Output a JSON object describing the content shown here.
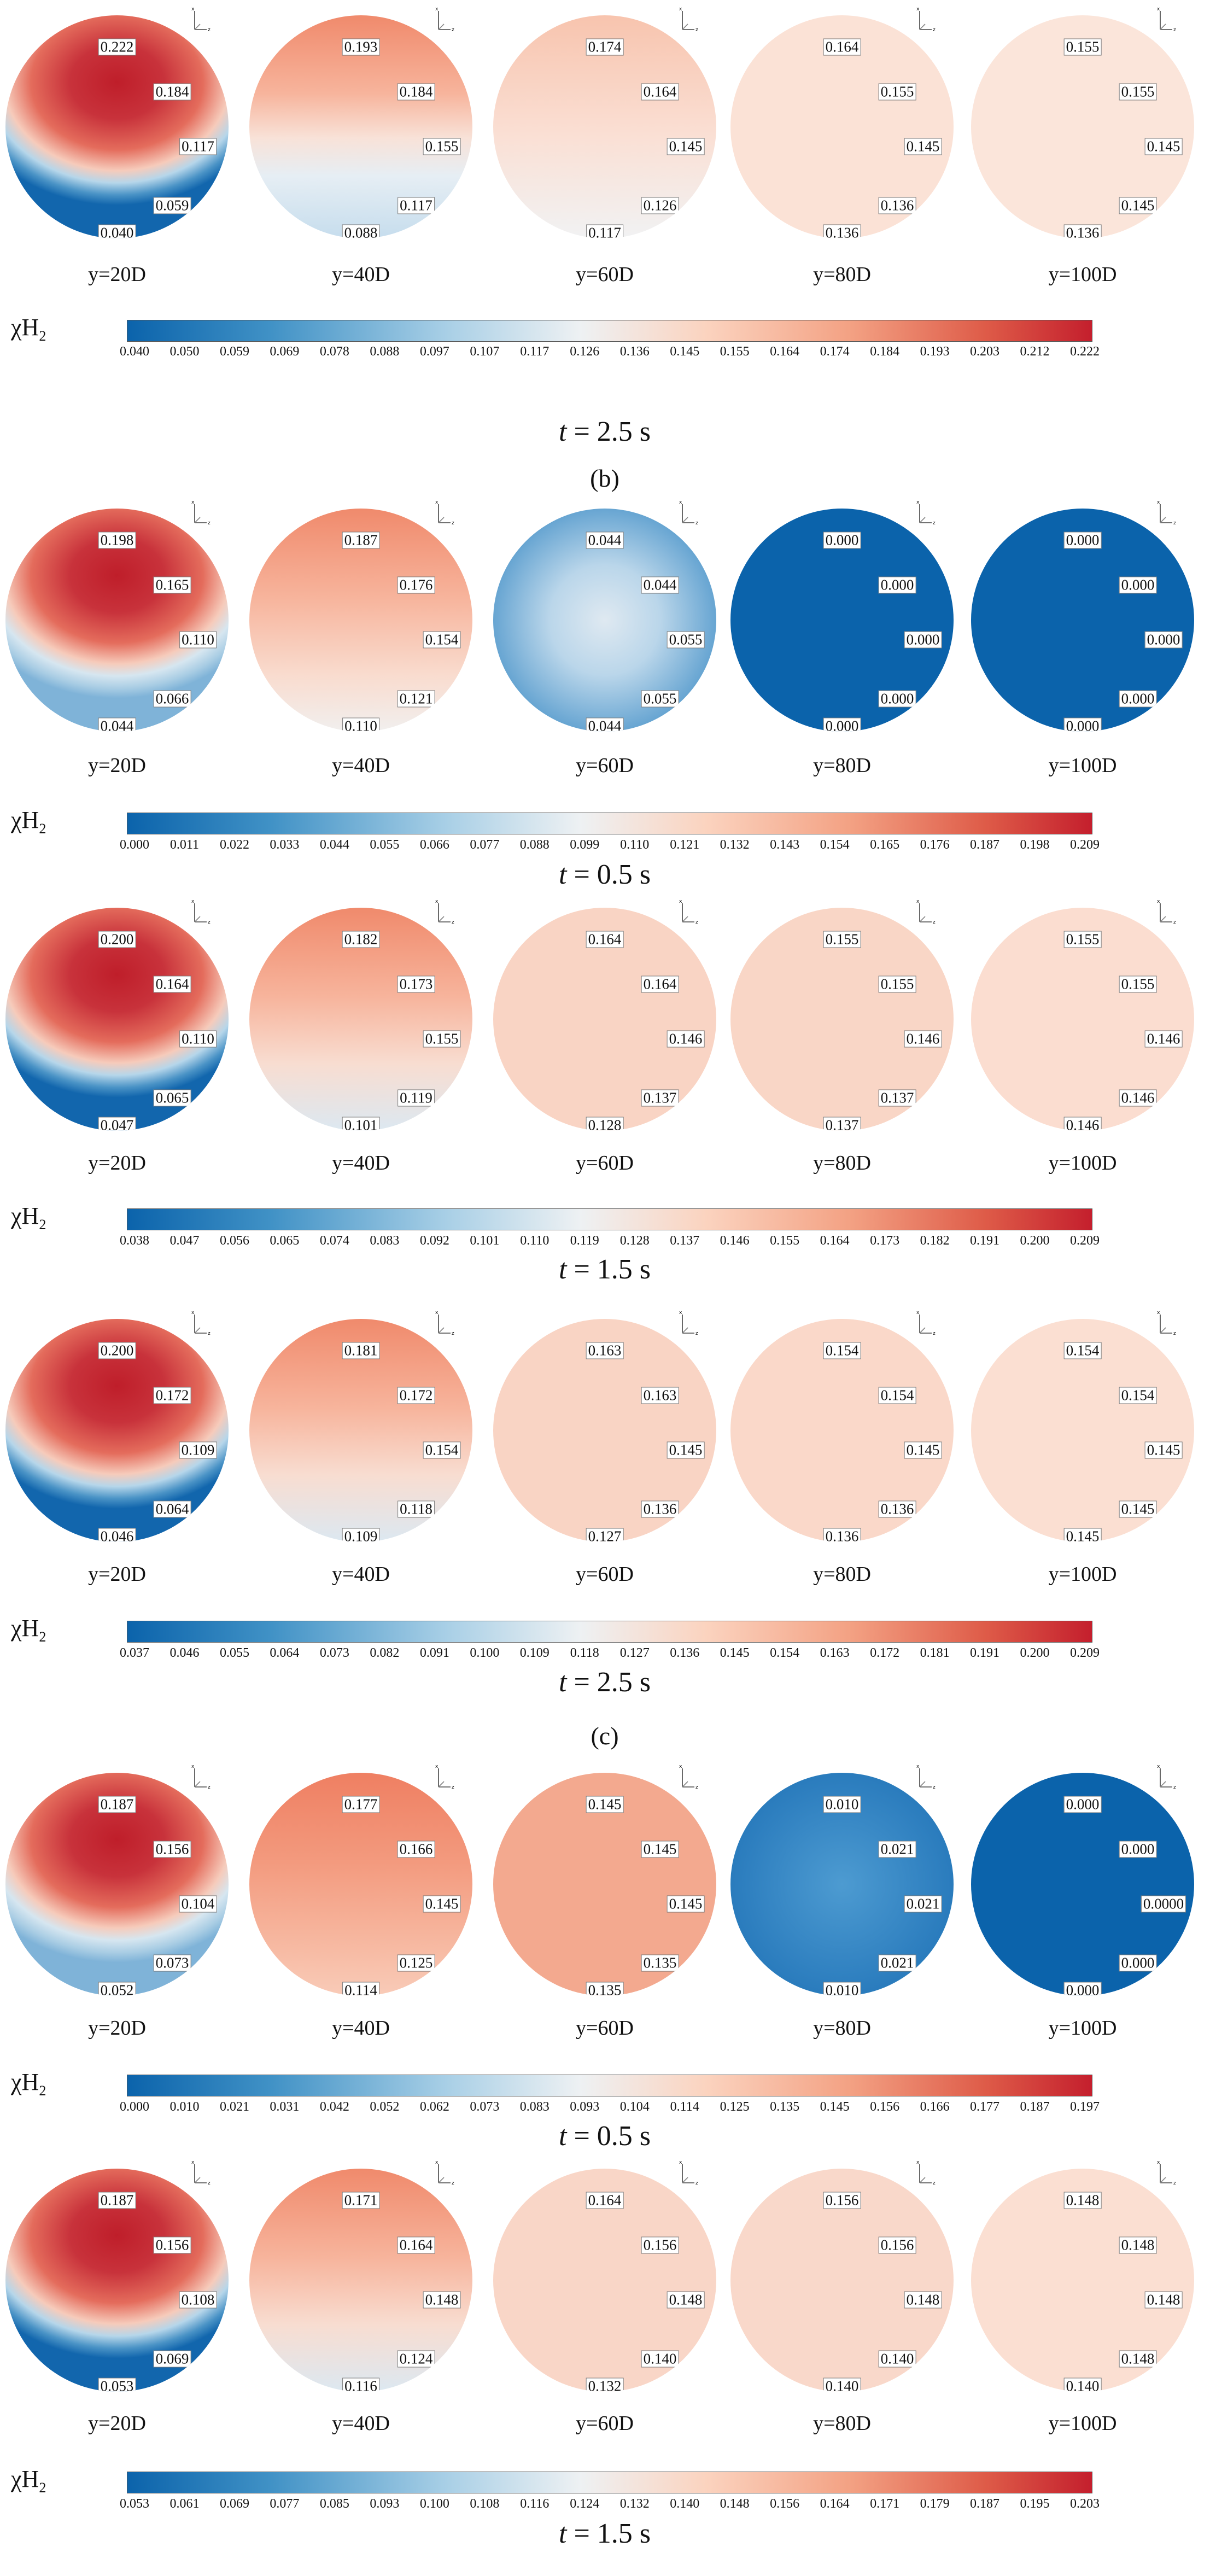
{
  "colorbar_symbol": "χ",
  "colorbar_sub": "H",
  "colorbar_subsub": "2",
  "positions": [
    "y=20D",
    "y=40D",
    "y=60D",
    "y=80D",
    "y=100D"
  ],
  "section_labels": [
    "(b)",
    "(c)"
  ],
  "colors": {
    "low": "#0b63ab",
    "mid": "#eef1f3",
    "high": "#c41f2d"
  },
  "rows": [
    {
      "time_var": "t",
      "time_text": " = 2.5 s",
      "ticks": [
        "0.040",
        "0.050",
        "0.059",
        "0.069",
        "0.078",
        "0.088",
        "0.097",
        "0.107",
        "0.117",
        "0.126",
        "0.136",
        "0.145",
        "0.155",
        "0.164",
        "0.174",
        "0.184",
        "0.193",
        "0.203",
        "0.212",
        "0.222"
      ],
      "circles": [
        {
          "labels": [
            "0.222",
            "0.184",
            "0.117",
            "0.059",
            "0.040"
          ]
        },
        {
          "labels": [
            "0.193",
            "0.184",
            "0.155",
            "0.117",
            "0.088"
          ]
        },
        {
          "labels": [
            "0.174",
            "0.164",
            "0.145",
            "0.126",
            "0.117"
          ]
        },
        {
          "labels": [
            "0.164",
            "0.155",
            "0.145",
            "0.136",
            "0.136"
          ]
        },
        {
          "labels": [
            "0.155",
            "0.155",
            "0.145",
            "0.145",
            "0.136"
          ]
        }
      ]
    },
    {
      "time_var": "t",
      "time_text": " = 0.5 s",
      "ticks": [
        "0.000",
        "0.011",
        "0.022",
        "0.033",
        "0.044",
        "0.055",
        "0.066",
        "0.077",
        "0.088",
        "0.099",
        "0.110",
        "0.121",
        "0.132",
        "0.143",
        "0.154",
        "0.165",
        "0.176",
        "0.187",
        "0.198",
        "0.209"
      ],
      "circles": [
        {
          "labels": [
            "0.198",
            "0.165",
            "0.110",
            "0.066",
            "0.044"
          ]
        },
        {
          "labels": [
            "0.187",
            "0.176",
            "0.154",
            "0.121",
            "0.110"
          ]
        },
        {
          "labels": [
            "0.044",
            "0.044",
            "0.055",
            "0.055",
            "0.044"
          ]
        },
        {
          "labels": [
            "0.000",
            "0.000",
            "0.000",
            "0.000",
            "0.000"
          ]
        },
        {
          "labels": [
            "0.000",
            "0.000",
            "0.000",
            "0.000",
            "0.000"
          ]
        }
      ]
    },
    {
      "time_var": "t",
      "time_text": " = 1.5 s",
      "ticks": [
        "0.038",
        "0.047",
        "0.056",
        "0.065",
        "0.074",
        "0.083",
        "0.092",
        "0.101",
        "0.110",
        "0.119",
        "0.128",
        "0.137",
        "0.146",
        "0.155",
        "0.164",
        "0.173",
        "0.182",
        "0.191",
        "0.200",
        "0.209"
      ],
      "circles": [
        {
          "labels": [
            "0.200",
            "0.164",
            "0.110",
            "0.065",
            "0.047"
          ]
        },
        {
          "labels": [
            "0.182",
            "0.173",
            "0.155",
            "0.119",
            "0.101"
          ]
        },
        {
          "labels": [
            "0.164",
            "0.164",
            "0.146",
            "0.137",
            "0.128"
          ]
        },
        {
          "labels": [
            "0.155",
            "0.155",
            "0.146",
            "0.137",
            "0.137"
          ]
        },
        {
          "labels": [
            "0.155",
            "0.155",
            "0.146",
            "0.146",
            "0.146"
          ]
        }
      ]
    },
    {
      "time_var": "t",
      "time_text": " = 2.5 s",
      "ticks": [
        "0.037",
        "0.046",
        "0.055",
        "0.064",
        "0.073",
        "0.082",
        "0.091",
        "0.100",
        "0.109",
        "0.118",
        "0.127",
        "0.136",
        "0.145",
        "0.154",
        "0.163",
        "0.172",
        "0.181",
        "0.191",
        "0.200",
        "0.209"
      ],
      "circles": [
        {
          "labels": [
            "0.200",
            "0.172",
            "0.109",
            "0.064",
            "0.046"
          ]
        },
        {
          "labels": [
            "0.181",
            "0.172",
            "0.154",
            "0.118",
            "0.109"
          ]
        },
        {
          "labels": [
            "0.163",
            "0.163",
            "0.145",
            "0.136",
            "0.127"
          ]
        },
        {
          "labels": [
            "0.154",
            "0.154",
            "0.145",
            "0.136",
            "0.136"
          ]
        },
        {
          "labels": [
            "0.154",
            "0.154",
            "0.145",
            "0.145",
            "0.145"
          ]
        }
      ]
    },
    {
      "time_var": "t",
      "time_text": " = 0.5 s",
      "ticks": [
        "0.000",
        "0.010",
        "0.021",
        "0.031",
        "0.042",
        "0.052",
        "0.062",
        "0.073",
        "0.083",
        "0.093",
        "0.104",
        "0.114",
        "0.125",
        "0.135",
        "0.145",
        "0.156",
        "0.166",
        "0.177",
        "0.187",
        "0.197"
      ],
      "circles": [
        {
          "labels": [
            "0.187",
            "0.156",
            "0.104",
            "0.073",
            "0.052"
          ]
        },
        {
          "labels": [
            "0.177",
            "0.166",
            "0.145",
            "0.125",
            "0.114"
          ]
        },
        {
          "labels": [
            "0.145",
            "0.145",
            "0.145",
            "0.135",
            "0.135"
          ]
        },
        {
          "labels": [
            "0.010",
            "0.021",
            "0.021",
            "0.021",
            "0.010"
          ]
        },
        {
          "labels": [
            "0.000",
            "0.000",
            "0.0000",
            "0.000",
            "0.000"
          ]
        }
      ]
    },
    {
      "time_var": "t",
      "time_text": " = 1.5 s",
      "ticks": [
        "0.053",
        "0.061",
        "0.069",
        "0.077",
        "0.085",
        "0.093",
        "0.100",
        "0.108",
        "0.116",
        "0.124",
        "0.132",
        "0.140",
        "0.148",
        "0.156",
        "0.164",
        "0.171",
        "0.179",
        "0.187",
        "0.195",
        "0.203"
      ],
      "circles": [
        {
          "labels": [
            "0.187",
            "0.156",
            "0.108",
            "0.069",
            "0.053"
          ]
        },
        {
          "labels": [
            "0.171",
            "0.164",
            "0.148",
            "0.124",
            "0.116"
          ]
        },
        {
          "labels": [
            "0.164",
            "0.156",
            "0.148",
            "0.140",
            "0.132"
          ]
        },
        {
          "labels": [
            "0.156",
            "0.156",
            "0.148",
            "0.140",
            "0.140"
          ]
        },
        {
          "labels": [
            "0.148",
            "0.148",
            "0.148",
            "0.148",
            "0.140"
          ]
        }
      ]
    }
  ]
}
